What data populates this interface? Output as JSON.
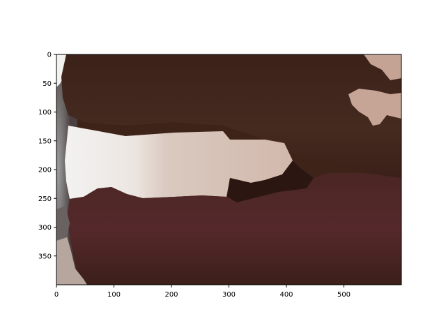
{
  "figure": {
    "x_axis": {
      "range": [
        0,
        600
      ],
      "ticks": [
        "0",
        "100",
        "200",
        "300",
        "400",
        "500"
      ]
    },
    "y_axis": {
      "range": [
        0,
        400
      ],
      "inverted": true,
      "ticks": [
        "0",
        "50",
        "100",
        "150",
        "200",
        "250",
        "300",
        "350"
      ]
    },
    "image": {
      "subject": "close-up-photo-of-mouth",
      "colors": {
        "lip_dark": "#3a2118",
        "lip_mid": "#4a2a22",
        "lip_red": "#5a2a2a",
        "teeth": "#d8c8bc",
        "highlight_white": "#f0efee",
        "skin_pink": "#c8a598",
        "gray_edge": "#8a8a8a"
      }
    }
  }
}
